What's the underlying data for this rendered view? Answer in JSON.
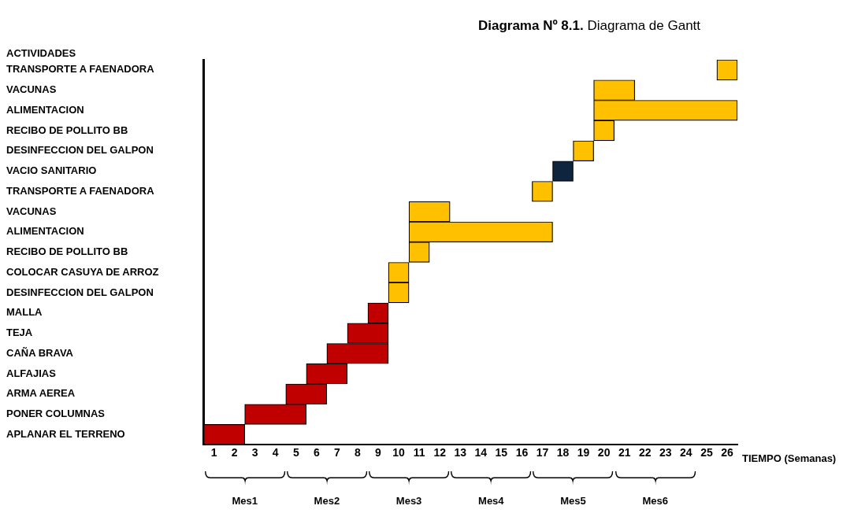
{
  "chart_data": {
    "type": "bar",
    "orientation": "horizontal",
    "title": "Diagrama Nº 8.1. Diagrama de Gantt",
    "ylabel": "ACTIVIDADES",
    "xlabel": "TIEMPO (Semanas)",
    "categories": [
      "TRANSPORTE A FAENADORA",
      "VACUNAS",
      "ALIMENTACION",
      "RECIBO DE POLLITO BB",
      "DESINFECCION DEL GALPON",
      "VACIO SANITARIO",
      "TRANSPORTE A FAENADORA",
      "VACUNAS",
      "ALIMENTACION",
      "RECIBO DE POLLITO BB",
      "COLOCAR CASUYA DE ARROZ",
      "DESINFECCION DEL GALPON",
      "MALLA",
      "TEJA",
      "CAÑA BRAVA",
      "ALFAJIAS",
      "ARMA AEREA",
      "PONER COLUMNAS",
      "APLANAR EL TERRENO"
    ],
    "base": [
      25,
      19,
      19,
      19,
      18,
      17,
      16,
      10,
      10,
      10,
      9,
      9,
      8,
      7,
      6,
      5,
      4,
      2,
      0
    ],
    "values": [
      1,
      2,
      7,
      1,
      1,
      1,
      1,
      2,
      7,
      1,
      1,
      1,
      1,
      2,
      3,
      2,
      2,
      3,
      2
    ],
    "colors": [
      "#ffc000",
      "#ffc000",
      "#ffc000",
      "#ffc000",
      "#ffc000",
      "#0f243e",
      "#ffc000",
      "#ffc000",
      "#ffc000",
      "#ffc000",
      "#ffc000",
      "#ffc000",
      "#c00000",
      "#c00000",
      "#c00000",
      "#c00000",
      "#c00000",
      "#c00000",
      "#c00000"
    ],
    "xlim": [
      0,
      26
    ],
    "xticks": [
      {
        "value": 0.5,
        "label": "1"
      },
      {
        "value": 1.5,
        "label": "2"
      },
      {
        "value": 2.5,
        "label": "3"
      },
      {
        "value": 3.5,
        "label": "4"
      },
      {
        "value": 4.5,
        "label": "5"
      },
      {
        "value": 5.5,
        "label": "6"
      },
      {
        "value": 6.5,
        "label": "7"
      },
      {
        "value": 7.5,
        "label": "8"
      },
      {
        "value": 8.5,
        "label": "9"
      },
      {
        "value": 9.5,
        "label": "10"
      },
      {
        "value": 10.5,
        "label": "11"
      },
      {
        "value": 11.5,
        "label": "12"
      },
      {
        "value": 12.5,
        "label": "13"
      },
      {
        "value": 13.5,
        "label": "14"
      },
      {
        "value": 14.5,
        "label": "15"
      },
      {
        "value": 15.5,
        "label": "16"
      },
      {
        "value": 16.5,
        "label": "17"
      },
      {
        "value": 17.5,
        "label": "18"
      },
      {
        "value": 18.5,
        "label": "19"
      },
      {
        "value": 19.5,
        "label": "20"
      },
      {
        "value": 20.5,
        "label": "21"
      },
      {
        "value": 21.5,
        "label": "22"
      },
      {
        "value": 22.5,
        "label": "23"
      },
      {
        "value": 23.5,
        "label": "24"
      },
      {
        "value": 24.5,
        "label": "25"
      },
      {
        "value": 25.5,
        "label": "26"
      }
    ],
    "annotations": [
      "Mes1",
      "Mes2",
      "Mes3",
      "Mes4",
      "Mes5",
      "Mes6"
    ]
  }
}
